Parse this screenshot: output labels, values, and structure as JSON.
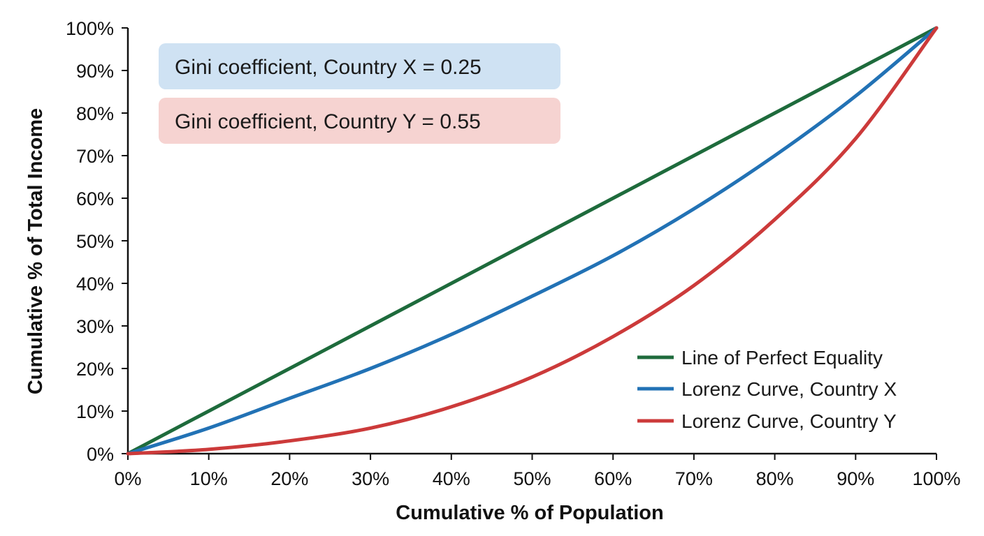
{
  "chart_data": {
    "type": "line",
    "title": "",
    "xlabel": "Cumulative % of Population",
    "ylabel": "Cumulative % of Total Income",
    "xlim": [
      0,
      100
    ],
    "ylim": [
      0,
      100
    ],
    "x_ticks": [
      0,
      10,
      20,
      30,
      40,
      50,
      60,
      70,
      80,
      90,
      100
    ],
    "y_ticks": [
      0,
      10,
      20,
      30,
      40,
      50,
      60,
      70,
      80,
      90,
      100
    ],
    "x_tick_labels": [
      "0%",
      "10%",
      "20%",
      "30%",
      "40%",
      "50%",
      "60%",
      "70%",
      "80%",
      "90%",
      "100%"
    ],
    "y_tick_labels": [
      "0%",
      "10%",
      "20%",
      "30%",
      "40%",
      "50%",
      "60%",
      "70%",
      "80%",
      "90%",
      "100%"
    ],
    "grid": false,
    "legend_position": "bottom-right",
    "x": [
      0,
      10,
      20,
      30,
      40,
      50,
      60,
      70,
      80,
      90,
      100
    ],
    "series": [
      {
        "name": "Line of Perfect Equality",
        "color": "#1e6b3c",
        "values": [
          0,
          10,
          20,
          30,
          40,
          50,
          60,
          70,
          80,
          90,
          100
        ]
      },
      {
        "name": "Lorenz Curve, Country X",
        "color": "#2272b5",
        "values": [
          0,
          6,
          13,
          20,
          28,
          37,
          46.5,
          57.5,
          70,
          84,
          100
        ]
      },
      {
        "name": "Lorenz Curve, Country Y",
        "color": "#cc3a3a",
        "values": [
          0,
          1,
          3,
          6,
          11,
          18,
          27.5,
          39.5,
          55,
          74,
          100
        ]
      }
    ],
    "annotations": [
      {
        "text": "Gini coefficient, Country X = 0.25",
        "background": "#cfe2f3"
      },
      {
        "text": "Gini coefficient, Country Y = 0.55",
        "background": "#f6d3d1"
      }
    ]
  }
}
